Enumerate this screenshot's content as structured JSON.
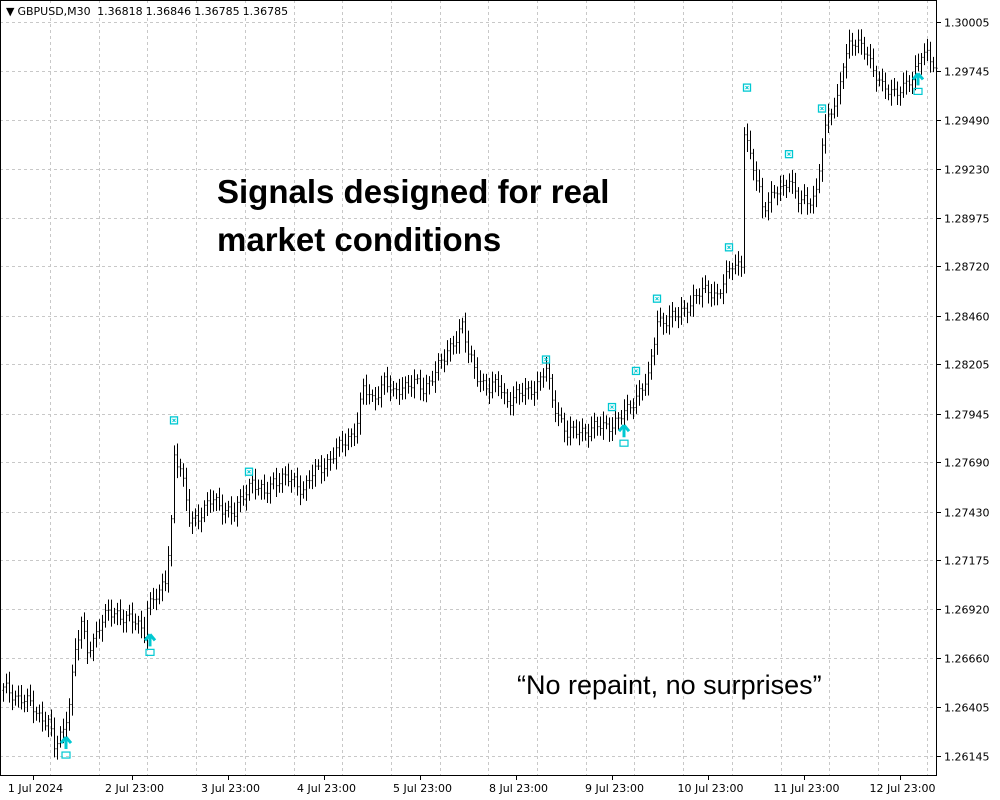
{
  "header": {
    "symbol": "GBPUSD,M30",
    "open": "1.36818",
    "high": "1.36846",
    "low": "1.36785",
    "close": "1.36785"
  },
  "annotations": {
    "headline": "Signals designed for real market conditions",
    "quote": "“No repaint, no surprises”"
  },
  "colors": {
    "bars": "#000000",
    "signal": "#00c8d2",
    "grid": "#c8c8c8"
  },
  "chart_data": {
    "type": "bar",
    "subtype": "ohlc",
    "symbol": "GBPUSD",
    "timeframe": "M30",
    "ylim": [
      1.26145,
      1.30005
    ],
    "y_ticks": [
      "1.30005",
      "1.29745",
      "1.29490",
      "1.29230",
      "1.28975",
      "1.28720",
      "1.28460",
      "1.28205",
      "1.27945",
      "1.27690",
      "1.27430",
      "1.27175",
      "1.26920",
      "1.26660",
      "1.26405",
      "1.26145"
    ],
    "x_ticks": [
      {
        "bar": 10,
        "label": "1 Jul 2024"
      },
      {
        "bar": 43,
        "label": "2 Jul 23:00"
      },
      {
        "bar": 75,
        "label": "3 Jul 23:00"
      },
      {
        "bar": 107,
        "label": "4 Jul 23:00"
      },
      {
        "bar": 139,
        "label": "5 Jul 23:00"
      },
      {
        "bar": 171,
        "label": "8 Jul 23:00"
      },
      {
        "bar": 203,
        "label": "9 Jul 23:00"
      },
      {
        "bar": 235,
        "label": "10 Jul 23:00"
      },
      {
        "bar": 267,
        "label": "11 Jul 23:00"
      },
      {
        "bar": 299,
        "label": "12 Jul 23:00"
      }
    ],
    "bar_count": 312,
    "price_path": [
      [
        1,
        1.2649
      ],
      [
        7,
        1.2644
      ],
      [
        12,
        1.2636
      ],
      [
        15,
        1.2633
      ],
      [
        17,
        1.2618
      ],
      [
        20,
        1.2628
      ],
      [
        22,
        1.2644
      ],
      [
        24,
        1.267
      ],
      [
        26,
        1.2683
      ],
      [
        28,
        1.267
      ],
      [
        32,
        1.2683
      ],
      [
        35,
        1.2689
      ],
      [
        38,
        1.269
      ],
      [
        42,
        1.2686
      ],
      [
        45,
        1.2683
      ],
      [
        47,
        1.2681
      ],
      [
        48,
        1.2694
      ],
      [
        52,
        1.2699
      ],
      [
        54,
        1.2707
      ],
      [
        56,
        1.2739
      ],
      [
        57,
        1.2773
      ],
      [
        59,
        1.2765
      ],
      [
        62,
        1.2739
      ],
      [
        65,
        1.2741
      ],
      [
        70,
        1.2749
      ],
      [
        73,
        1.2746
      ],
      [
        77,
        1.2741
      ],
      [
        80,
        1.2752
      ],
      [
        83,
        1.276
      ],
      [
        85,
        1.2754
      ],
      [
        87,
        1.2752
      ],
      [
        90,
        1.276
      ],
      [
        93,
        1.276
      ],
      [
        97,
        1.2759
      ],
      [
        100,
        1.2755
      ],
      [
        103,
        1.2762
      ],
      [
        107,
        1.2768
      ],
      [
        110,
        1.2773
      ],
      [
        113,
        1.2778
      ],
      [
        117,
        1.2786
      ],
      [
        118,
        1.2791
      ],
      [
        120,
        1.2807
      ],
      [
        123,
        1.2802
      ],
      [
        127,
        1.2812
      ],
      [
        130,
        1.2804
      ],
      [
        133,
        1.281
      ],
      [
        137,
        1.281
      ],
      [
        140,
        1.2807
      ],
      [
        143,
        1.2815
      ],
      [
        147,
        1.2823
      ],
      [
        150,
        1.2833
      ],
      [
        153,
        1.2841
      ],
      [
        155,
        1.2825
      ],
      [
        158,
        1.2815
      ],
      [
        162,
        1.2807
      ],
      [
        165,
        1.281
      ],
      [
        168,
        1.2802
      ],
      [
        172,
        1.2804
      ],
      [
        175,
        1.2807
      ],
      [
        178,
        1.281
      ],
      [
        181,
        1.2817
      ],
      [
        183,
        1.2802
      ],
      [
        186,
        1.2791
      ],
      [
        188,
        1.2783
      ],
      [
        192,
        1.2786
      ],
      [
        195,
        1.2786
      ],
      [
        198,
        1.2787
      ],
      [
        202,
        1.2789
      ],
      [
        205,
        1.2791
      ],
      [
        208,
        1.2796
      ],
      [
        212,
        1.2807
      ],
      [
        215,
        1.2812
      ],
      [
        217,
        1.2833
      ],
      [
        218,
        1.2844
      ],
      [
        222,
        1.2844
      ],
      [
        225,
        1.2846
      ],
      [
        228,
        1.2852
      ],
      [
        232,
        1.2857
      ],
      [
        235,
        1.286
      ],
      [
        238,
        1.2857
      ],
      [
        241,
        1.2865
      ],
      [
        243,
        1.2873
      ],
      [
        246,
        1.2874
      ],
      [
        247,
        1.2944
      ],
      [
        249,
        1.2928
      ],
      [
        252,
        1.2912
      ],
      [
        253,
        1.2904
      ],
      [
        257,
        1.291
      ],
      [
        260,
        1.2912
      ],
      [
        262,
        1.292
      ],
      [
        265,
        1.2907
      ],
      [
        268,
        1.2904
      ],
      [
        271,
        1.2912
      ],
      [
        273,
        1.2938
      ],
      [
        275,
        1.2949
      ],
      [
        278,
        1.296
      ],
      [
        280,
        1.2981
      ],
      [
        282,
        1.2988
      ],
      [
        285,
        1.2988
      ],
      [
        288,
        1.2986
      ],
      [
        290,
        1.2975
      ],
      [
        293,
        1.2965
      ],
      [
        297,
        1.2965
      ],
      [
        300,
        1.2965
      ],
      [
        303,
        1.297
      ],
      [
        306,
        1.2986
      ],
      [
        308,
        1.2983
      ],
      [
        311,
        1.2973
      ]
    ],
    "buy_signals": [
      {
        "bar": 21,
        "price": 1.2615
      },
      {
        "bar": 49,
        "price": 1.2669
      },
      {
        "bar": 207,
        "price": 1.2779
      },
      {
        "bar": 305,
        "price": 1.2964
      }
    ],
    "exit_markers": [
      {
        "bar": 57,
        "price": 1.2791
      },
      {
        "bar": 82,
        "price": 1.2764
      },
      {
        "bar": 181,
        "price": 1.2823
      },
      {
        "bar": 203,
        "price": 1.2798
      },
      {
        "bar": 211,
        "price": 1.2817
      },
      {
        "bar": 218,
        "price": 1.2855
      },
      {
        "bar": 242,
        "price": 1.2882
      },
      {
        "bar": 248,
        "price": 1.2966
      },
      {
        "bar": 262,
        "price": 1.2931
      },
      {
        "bar": 273,
        "price": 1.2955
      }
    ]
  }
}
